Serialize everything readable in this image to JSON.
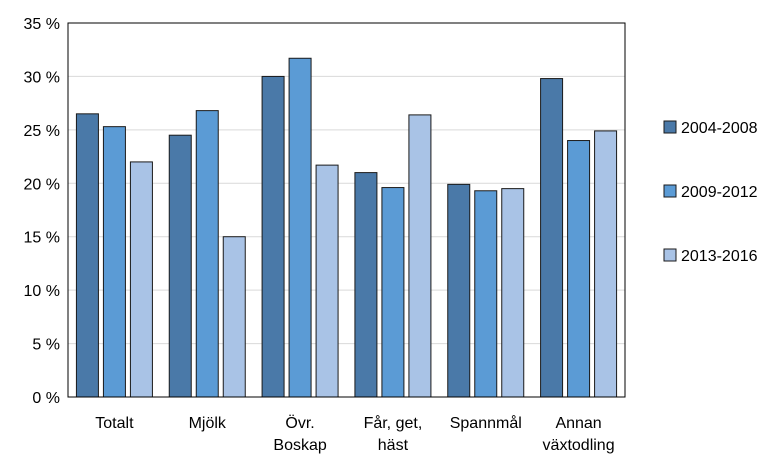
{
  "chart_data": {
    "type": "bar",
    "categories": [
      [
        "Totalt"
      ],
      [
        "Mjölk"
      ],
      [
        "Övr.",
        "Boskap"
      ],
      [
        "Får,  get,",
        "häst"
      ],
      [
        "Spannmål"
      ],
      [
        "Annan",
        "växtodling"
      ]
    ],
    "series": [
      {
        "name": "2004-2008",
        "color": "#4a79a8",
        "values": [
          26.5,
          24.5,
          30.0,
          21.0,
          19.9,
          29.8
        ]
      },
      {
        "name": "2009-2012",
        "color": "#5b9bd5",
        "values": [
          25.3,
          26.8,
          31.7,
          19.6,
          19.3,
          24.0
        ]
      },
      {
        "name": "2013-2016",
        "color": "#a9c3e6",
        "values": [
          22.0,
          15.0,
          21.7,
          26.4,
          19.5,
          24.9
        ]
      }
    ],
    "ylim": [
      0,
      35
    ],
    "yticks": [
      {
        "value": 0,
        "label": "0 %"
      },
      {
        "value": 5,
        "label": "5 %"
      },
      {
        "value": 10,
        "label": "10 %"
      },
      {
        "value": 15,
        "label": "15 %"
      },
      {
        "value": 20,
        "label": "20 %"
      },
      {
        "value": 25,
        "label": "25 %"
      },
      {
        "value": 30,
        "label": "30 %"
      },
      {
        "value": 35,
        "label": "35 %"
      }
    ],
    "grid": true,
    "legend": "right",
    "title": "",
    "xlabel": "",
    "ylabel": ""
  }
}
